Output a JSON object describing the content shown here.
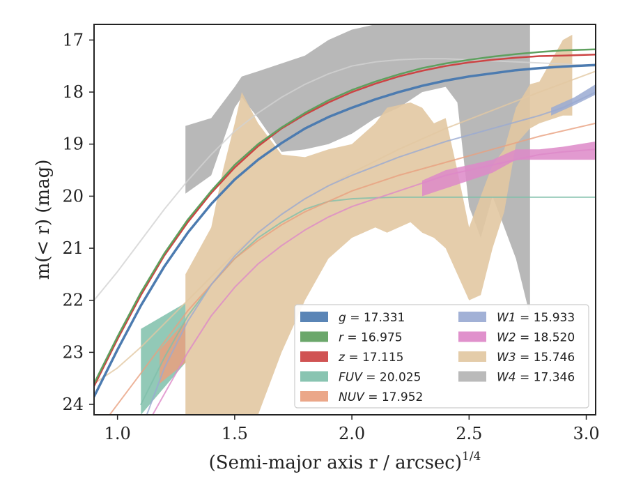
{
  "chart_data": {
    "type": "area",
    "xlabel": "(Semi-major axis r / arcsec)",
    "xlabel_exponent": "1/4",
    "ylabel": "m(< r) (mag)",
    "xlim": [
      0.9,
      3.04
    ],
    "ylim": [
      24.2,
      16.7
    ],
    "y_inverted": true,
    "x_ticks": [
      1.0,
      1.5,
      2.0,
      2.5,
      3.0
    ],
    "x_tick_labels": [
      "1.0",
      "1.5",
      "2.0",
      "2.5",
      "3.0"
    ],
    "y_ticks": [
      17,
      18,
      19,
      20,
      21,
      22,
      23,
      24
    ],
    "y_tick_labels": [
      "17",
      "18",
      "19",
      "20",
      "21",
      "22",
      "23",
      "24"
    ],
    "grid": false,
    "legend_position": "lower-right",
    "series": [
      {
        "name": "g = 17.331",
        "label_var": "g",
        "label_val": "17.331",
        "color": "#4c7bb0",
        "width": 3.5,
        "x": [
          0.9,
          1.0,
          1.1,
          1.2,
          1.3,
          1.4,
          1.5,
          1.6,
          1.7,
          1.8,
          1.9,
          2.0,
          2.1,
          2.2,
          2.3,
          2.4,
          2.5,
          2.6,
          2.7,
          2.8,
          2.9,
          3.04
        ],
        "y": [
          23.85,
          22.95,
          22.1,
          21.35,
          20.7,
          20.15,
          19.68,
          19.3,
          18.98,
          18.7,
          18.48,
          18.3,
          18.14,
          18.0,
          17.88,
          17.78,
          17.7,
          17.64,
          17.58,
          17.54,
          17.51,
          17.48
        ]
      },
      {
        "name": "r = 16.975",
        "label_var": "r",
        "label_val": "16.975",
        "color": "#5ea05e",
        "width": 2.5,
        "x": [
          0.9,
          1.0,
          1.1,
          1.2,
          1.3,
          1.4,
          1.5,
          1.6,
          1.7,
          1.8,
          1.9,
          2.0,
          2.1,
          2.2,
          2.3,
          2.4,
          2.5,
          2.6,
          2.7,
          2.8,
          2.9,
          3.04
        ],
        "y": [
          23.6,
          22.7,
          21.85,
          21.1,
          20.45,
          19.9,
          19.4,
          19.0,
          18.68,
          18.4,
          18.16,
          17.96,
          17.8,
          17.66,
          17.54,
          17.45,
          17.38,
          17.32,
          17.27,
          17.23,
          17.2,
          17.18
        ]
      },
      {
        "name": "z = 17.115",
        "label_var": "z",
        "label_val": "17.115",
        "color": "#cc4444",
        "width": 2.5,
        "x": [
          0.9,
          1.0,
          1.1,
          1.2,
          1.3,
          1.4,
          1.5,
          1.6,
          1.7,
          1.8,
          1.9,
          2.0,
          2.1,
          2.2,
          2.3,
          2.4,
          2.5,
          2.6,
          2.7,
          2.8,
          2.9,
          3.04
        ],
        "y": [
          23.65,
          22.75,
          21.9,
          21.14,
          20.5,
          19.94,
          19.45,
          19.04,
          18.7,
          18.43,
          18.2,
          18.0,
          17.84,
          17.7,
          17.59,
          17.5,
          17.43,
          17.38,
          17.34,
          17.31,
          17.3,
          17.28
        ]
      },
      {
        "name": "FUV = 20.025",
        "label_var": "FUV",
        "label_val": "20.025",
        "color": "#7fbfaa",
        "band_x": [
          1.1,
          1.29
        ],
        "band_upper": [
          22.55,
          22.05
        ],
        "band_lower": [
          24.2,
          23.2
        ],
        "x": [
          1.1,
          1.2,
          1.3,
          1.4,
          1.5,
          1.6,
          1.7,
          1.8,
          1.9,
          2.0,
          2.1,
          2.2,
          2.4,
          2.6,
          2.8,
          3.04
        ],
        "y": [
          24.0,
          23.1,
          22.3,
          21.7,
          21.2,
          20.8,
          20.5,
          20.25,
          20.1,
          20.05,
          20.03,
          20.02,
          20.02,
          20.02,
          20.02,
          20.02
        ]
      },
      {
        "name": "NUV = 17.952",
        "label_var": "NUV",
        "label_val": "17.952",
        "color": "#e9a07f",
        "band_x": [
          1.18,
          1.29
        ],
        "band_upper": [
          22.95,
          22.4
        ],
        "band_lower": [
          23.6,
          23.2
        ],
        "x": [
          0.95,
          1.1,
          1.2,
          1.3,
          1.4,
          1.5,
          1.6,
          1.7,
          1.8,
          1.9,
          2.0,
          2.2,
          2.4,
          2.6,
          2.8,
          3.04
        ],
        "y": [
          24.3,
          23.4,
          22.8,
          22.2,
          21.7,
          21.2,
          20.85,
          20.55,
          20.3,
          20.1,
          19.9,
          19.6,
          19.35,
          19.1,
          18.85,
          18.6
        ]
      },
      {
        "name": "W1 = 15.933",
        "label_var": "W1",
        "label_val": "15.933",
        "color": "#9aaad2",
        "band_x": [
          2.85,
          2.95,
          3.04
        ],
        "band_upper": [
          18.3,
          18.1,
          17.85
        ],
        "band_lower": [
          18.45,
          18.25,
          18.05
        ],
        "x": [
          1.1,
          1.2,
          1.3,
          1.4,
          1.5,
          1.6,
          1.7,
          1.8,
          1.9,
          2.0,
          2.2,
          2.4,
          2.6,
          2.8,
          2.9,
          3.04
        ],
        "y": [
          24.5,
          23.3,
          22.4,
          21.7,
          21.15,
          20.7,
          20.35,
          20.05,
          19.8,
          19.6,
          19.25,
          18.95,
          18.7,
          18.45,
          18.3,
          18.0
        ]
      },
      {
        "name": "W2 = 18.520",
        "label_var": "W2",
        "label_val": "18.520",
        "color": "#dd88c8",
        "band_x": [
          2.3,
          2.4,
          2.5,
          2.6,
          2.7,
          2.8,
          2.9,
          3.04
        ],
        "band_upper": [
          19.7,
          19.5,
          19.4,
          19.3,
          19.1,
          19.1,
          19.05,
          18.95
        ],
        "band_lower": [
          20.0,
          19.85,
          19.7,
          19.55,
          19.3,
          19.3,
          19.3,
          19.3
        ],
        "x": [
          1.1,
          1.2,
          1.3,
          1.4,
          1.5,
          1.6,
          1.7,
          1.8,
          1.9,
          2.0,
          2.2,
          2.4,
          2.6,
          2.8,
          2.9,
          3.04
        ],
        "y": [
          24.6,
          23.8,
          23.0,
          22.3,
          21.75,
          21.3,
          20.95,
          20.65,
          20.4,
          20.2,
          19.9,
          19.6,
          19.4,
          19.2,
          19.15,
          19.1
        ]
      },
      {
        "name": "W3 = 15.746",
        "label_var": "W3",
        "label_val": "15.746",
        "color": "#e2c8a2",
        "band_x": [
          1.29,
          1.4,
          1.45,
          1.5,
          1.53,
          1.6,
          1.7,
          1.8,
          1.9,
          2.0,
          2.1,
          2.15,
          2.25,
          2.3,
          2.35,
          2.4,
          2.45,
          2.5,
          2.55,
          2.6,
          2.65,
          2.7,
          2.76,
          2.8,
          2.9,
          2.94
        ],
        "band_upper": [
          21.5,
          20.6,
          19.5,
          18.6,
          18.0,
          18.6,
          19.2,
          19.25,
          19.1,
          19.0,
          18.6,
          18.3,
          18.2,
          18.3,
          18.6,
          18.5,
          19.5,
          20.6,
          20.0,
          19.4,
          19.1,
          18.3,
          17.85,
          17.8,
          17.0,
          16.9
        ],
        "band_lower": [
          24.2,
          24.2,
          24.2,
          24.2,
          24.2,
          24.2,
          23.0,
          22.0,
          21.2,
          20.8,
          20.6,
          20.7,
          20.5,
          20.7,
          20.8,
          21.0,
          21.5,
          22.0,
          21.9,
          21.0,
          20.3,
          19.0,
          18.7,
          18.6,
          18.45,
          18.45
        ],
        "x": [
          0.9,
          1.0,
          1.1,
          1.2,
          1.3,
          1.4,
          1.5,
          1.6,
          1.7,
          1.8,
          1.9,
          2.0,
          2.2,
          2.4,
          2.6,
          2.8,
          3.04
        ],
        "y": [
          23.6,
          23.3,
          22.9,
          22.45,
          22.0,
          21.55,
          21.1,
          20.7,
          20.35,
          20.05,
          19.8,
          19.55,
          19.1,
          18.7,
          18.35,
          18.0,
          17.6
        ]
      },
      {
        "name": "W4 = 17.346",
        "label_var": "W4",
        "label_val": "17.346",
        "color": "#b4b4b4",
        "band_x": [
          1.29,
          1.4,
          1.5,
          1.53,
          1.6,
          1.7,
          1.8,
          1.9,
          2.0,
          2.1,
          2.2,
          2.3,
          2.4,
          2.45,
          2.5,
          2.55,
          2.6,
          2.7,
          2.76
        ],
        "band_upper": [
          18.65,
          18.5,
          17.9,
          17.7,
          17.6,
          17.45,
          17.3,
          17.0,
          16.8,
          16.7,
          16.7,
          16.7,
          16.7,
          16.7,
          16.7,
          16.7,
          16.7,
          16.7,
          16.7
        ],
        "band_lower": [
          19.95,
          19.6,
          18.3,
          18.1,
          18.5,
          19.15,
          19.1,
          19.0,
          18.8,
          18.5,
          18.3,
          18.0,
          17.9,
          18.2,
          20.2,
          20.8,
          20.0,
          21.2,
          22.3
        ],
        "x": [
          0.9,
          1.0,
          1.1,
          1.2,
          1.3,
          1.4,
          1.5,
          1.6,
          1.7,
          1.8,
          1.9,
          2.0,
          2.1,
          2.2,
          2.3,
          2.4,
          2.5,
          2.6,
          2.7,
          2.8,
          2.9,
          3.04
        ],
        "y": [
          22.0,
          21.45,
          20.85,
          20.25,
          19.7,
          19.2,
          18.75,
          18.4,
          18.1,
          17.85,
          17.65,
          17.5,
          17.42,
          17.38,
          17.36,
          17.36,
          17.38,
          17.4,
          17.42,
          17.44,
          17.46,
          17.5
        ]
      }
    ]
  }
}
